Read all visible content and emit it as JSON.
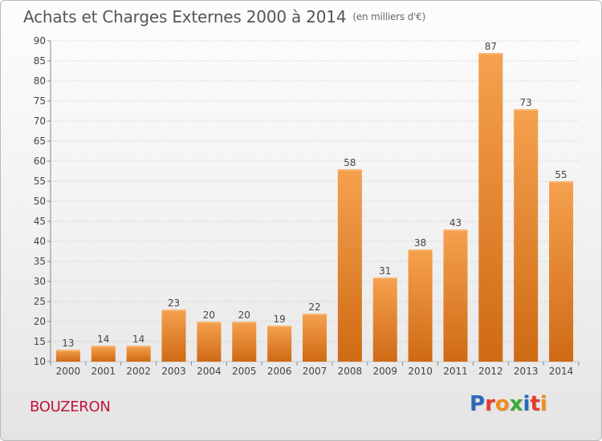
{
  "header": {
    "title": "Achats et Charges Externes 2000 à 2014",
    "subtitle": "(en milliers d'€)"
  },
  "footer": {
    "place": "BOUZERON",
    "logo_text": "Proxiti",
    "logo_colors": [
      "#2a6ab8",
      "#e8382b",
      "#f08c1e",
      "#3aa835",
      "#2a6ab8",
      "#e8382b",
      "#f08c1e"
    ]
  },
  "colors": {
    "bar_top": "#f6a14e",
    "bar_bottom": "#cf6a14",
    "grid": "#c4c4c4",
    "axis_text": "#444444"
  },
  "chart_data": {
    "type": "bar",
    "title": "Achats et Charges Externes 2000 à 2014",
    "subtitle": "(en milliers d'€)",
    "categories": [
      "2000",
      "2001",
      "2002",
      "2003",
      "2004",
      "2005",
      "2006",
      "2007",
      "2008",
      "2009",
      "2010",
      "2011",
      "2012",
      "2013",
      "2014"
    ],
    "values": [
      13,
      14,
      14,
      23,
      20,
      20,
      19,
      22,
      58,
      31,
      38,
      43,
      87,
      73,
      55
    ],
    "ylim": [
      10,
      90
    ],
    "yticks": [
      10,
      15,
      20,
      25,
      30,
      35,
      40,
      45,
      50,
      55,
      60,
      65,
      70,
      75,
      80,
      85,
      90
    ],
    "grid": true,
    "data_labels": true
  }
}
